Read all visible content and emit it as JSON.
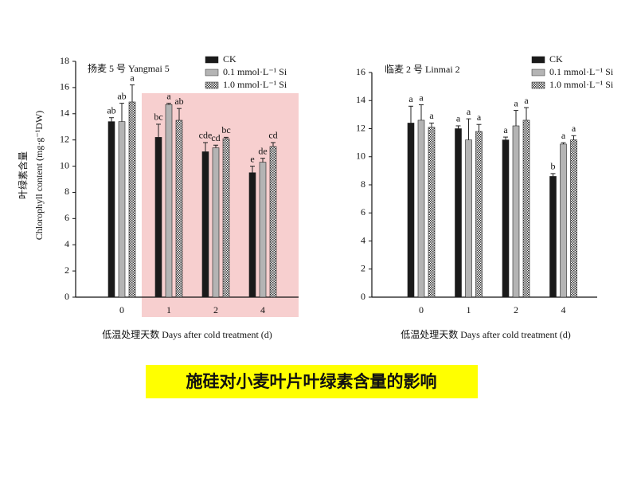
{
  "chart_data": [
    {
      "type": "bar",
      "title": "扬麦 5 号  Yangmai 5",
      "ylabel": [
        "叶绿素含量",
        "Chlorophyll content (mg·g⁻¹DW)"
      ],
      "xlabel": "低温处理天数  Days after cold treatment (d)",
      "categories": [
        "0",
        "1",
        "2",
        "4"
      ],
      "ylim": [
        0,
        18
      ],
      "yticks": [
        0,
        2,
        4,
        6,
        8,
        10,
        12,
        14,
        16,
        18
      ],
      "series": [
        {
          "name": "CK",
          "color": "#1a1a1a",
          "values": [
            13.4,
            12.2,
            11.1,
            9.5
          ],
          "errors": [
            0.3,
            1.0,
            0.7,
            0.5
          ],
          "letters": [
            "ab",
            "bc",
            "cde",
            "e"
          ]
        },
        {
          "name": "0.1 mmol·L⁻¹ Si",
          "color": "#b4b4b4",
          "values": [
            13.4,
            14.7,
            11.4,
            10.3
          ],
          "errors": [
            1.4,
            0.1,
            0.2,
            0.3
          ],
          "letters": [
            "ab",
            "a",
            "cd",
            "de"
          ]
        },
        {
          "name": "1.0 mmol·L⁻¹ Si",
          "color": "#555555",
          "pattern": "checker",
          "values": [
            14.9,
            13.5,
            12.1,
            11.5
          ],
          "errors": [
            1.3,
            0.9,
            0.1,
            0.3
          ],
          "letters": [
            "a",
            "ab",
            "bc",
            "cd"
          ]
        }
      ]
    },
    {
      "type": "bar",
      "title": "临麦 2 号  Linmai 2",
      "xlabel": "低温处理天数  Days after cold treatment (d)",
      "categories": [
        "0",
        "1",
        "2",
        "4"
      ],
      "ylim": [
        0,
        16
      ],
      "yticks": [
        0,
        2,
        4,
        6,
        8,
        10,
        12,
        14,
        16
      ],
      "series": [
        {
          "name": "CK",
          "color": "#1a1a1a",
          "values": [
            12.4,
            12.0,
            11.2,
            8.6
          ],
          "errors": [
            1.2,
            0.2,
            0.2,
            0.2
          ],
          "letters": [
            "a",
            "a",
            "a",
            "b"
          ]
        },
        {
          "name": "0.1 mmol·L⁻¹ Si",
          "color": "#b4b4b4",
          "values": [
            12.6,
            11.2,
            12.2,
            10.9
          ],
          "errors": [
            1.1,
            1.5,
            1.1,
            0.1
          ],
          "letters": [
            "a",
            "a",
            "a",
            "a"
          ]
        },
        {
          "name": "1.0 mmol·L⁻¹ Si",
          "color": "#555555",
          "pattern": "checker",
          "values": [
            12.1,
            11.8,
            12.6,
            11.2
          ],
          "errors": [
            0.3,
            0.5,
            0.9,
            0.3
          ],
          "letters": [
            "a",
            "a",
            "a",
            "a"
          ]
        }
      ]
    }
  ],
  "caption": "施硅对小麦叶片叶绿素含量的影响"
}
